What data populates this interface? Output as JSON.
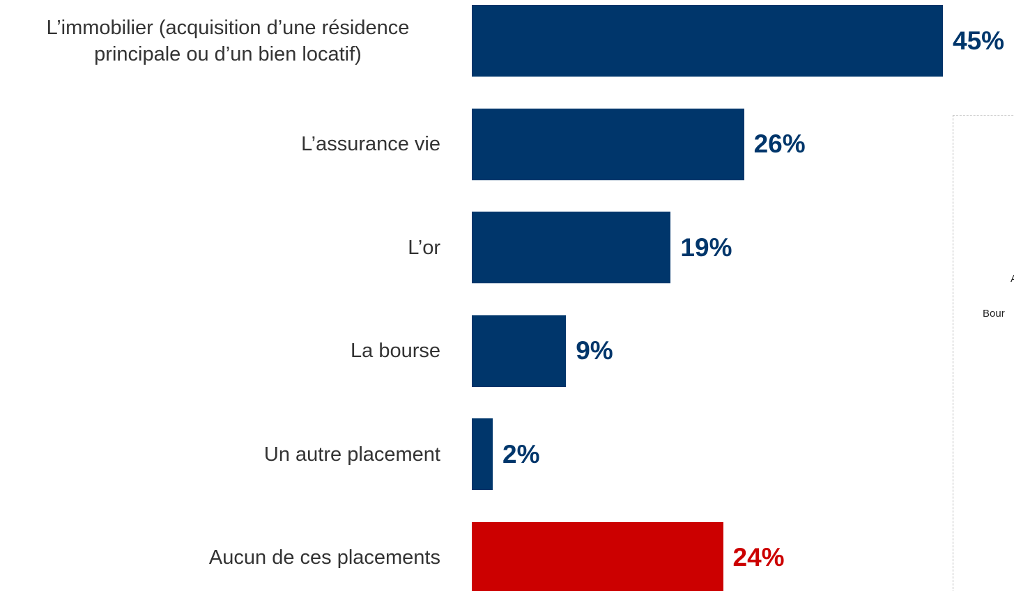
{
  "chart_data": {
    "type": "barh",
    "categories": [
      "L’immobilier (acquisition d’une résidence principale ou d’un bien locatif)",
      "L’assurance vie",
      "L’or",
      "La bourse",
      "Un autre placement",
      "Aucun de ces placements"
    ],
    "values": [
      45,
      26,
      19,
      9,
      2,
      24
    ],
    "value_labels": [
      "45%",
      "26%",
      "19%",
      "9%",
      "2%",
      "24%"
    ],
    "colors": [
      "#00366b",
      "#00366b",
      "#00366b",
      "#00366b",
      "#00366b",
      "#cc0000"
    ],
    "xlim": [
      0,
      45
    ],
    "annotations": [
      "A",
      "Bour"
    ]
  }
}
